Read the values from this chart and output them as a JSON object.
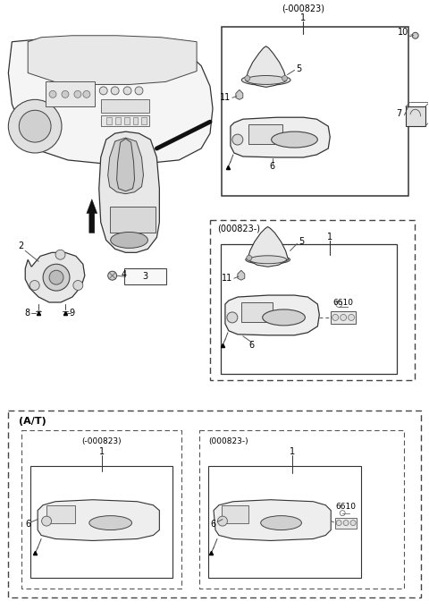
{
  "bg_color": "#ffffff",
  "fig_width": 4.8,
  "fig_height": 6.82,
  "dpi": 100,
  "box1_label": "(-000823)",
  "box2_label": "(000823-)",
  "box3_label": "(A/T)",
  "box3a_label": "(-000823)",
  "box3b_label": "(000823-)"
}
